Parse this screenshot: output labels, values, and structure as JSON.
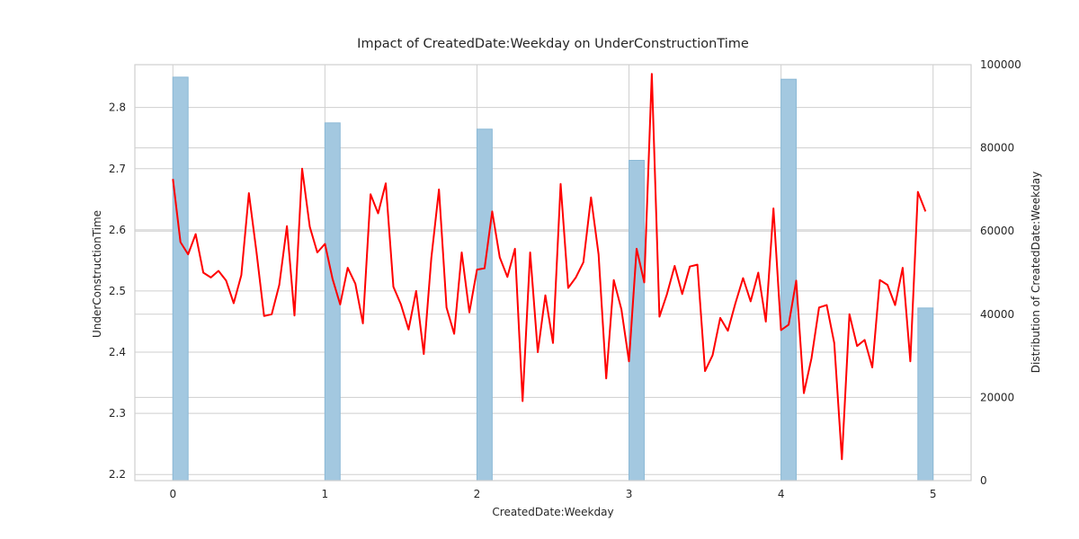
{
  "chart_data": {
    "type": "bar",
    "title": "Impact of CreatedDate:Weekday on UnderConstructionTime",
    "xlabel": "CreatedDate:Weekday",
    "ylabel": "UnderConstructionTime",
    "y2label": "Distribution of CreatedDate:Weekday",
    "xlim": [
      -0.25,
      5.25
    ],
    "ylim": [
      2.19,
      2.87
    ],
    "y2lim": [
      0,
      100000
    ],
    "x_ticks": [
      0,
      1,
      2,
      3,
      4,
      5
    ],
    "y_ticks": [
      2.2,
      2.3,
      2.4,
      2.5,
      2.6,
      2.7,
      2.8
    ],
    "y2_ticks": [
      0,
      20000,
      40000,
      60000,
      80000,
      100000
    ],
    "grid": true,
    "colors": {
      "line": "#ff0000",
      "bars": "#a3c8e0",
      "bar_edge": "#8bb9d6",
      "grid": "#cfcfcf"
    },
    "histogram": {
      "bin_width": 0.1,
      "bins": [
        {
          "left": 0.0,
          "count": 97000
        },
        {
          "left": 1.0,
          "count": 86000
        },
        {
          "left": 2.0,
          "count": 84500
        },
        {
          "left": 3.0,
          "count": 77000
        },
        {
          "left": 4.0,
          "count": 96500
        },
        {
          "left": 4.9,
          "count": 41500
        }
      ]
    },
    "series": [
      {
        "type": "line",
        "x": [
          0.0,
          0.05,
          0.1,
          0.15,
          0.2,
          0.25,
          0.3,
          0.35,
          0.4,
          0.45,
          0.5,
          0.55,
          0.6,
          0.65,
          0.7,
          0.75,
          0.8,
          0.85,
          0.9,
          0.95,
          1.0,
          1.05,
          1.1,
          1.15,
          1.2,
          1.25,
          1.3,
          1.35,
          1.4,
          1.45,
          1.5,
          1.55,
          1.6,
          1.65,
          1.7,
          1.75,
          1.8,
          1.85,
          1.9,
          1.95,
          2.0,
          2.05,
          2.1,
          2.15,
          2.2,
          2.25,
          2.3,
          2.35,
          2.4,
          2.45,
          2.5,
          2.55,
          2.6,
          2.65,
          2.7,
          2.75,
          2.8,
          2.85,
          2.9,
          2.95,
          3.0,
          3.05,
          3.1,
          3.15,
          3.2,
          3.25,
          3.3,
          3.35,
          3.4,
          3.45,
          3.5,
          3.55,
          3.6,
          3.65,
          3.7,
          3.75,
          3.8,
          3.85,
          3.9,
          3.95,
          4.0,
          4.05,
          4.1,
          4.15,
          4.2,
          4.25,
          4.3,
          4.35,
          4.4,
          4.45,
          4.5,
          4.55,
          4.6,
          4.65,
          4.7,
          4.75,
          4.8,
          4.85,
          4.9,
          4.95
        ],
        "y": [
          2.683,
          2.58,
          2.56,
          2.593,
          2.53,
          2.522,
          2.533,
          2.517,
          2.48,
          2.526,
          2.66,
          2.563,
          2.459,
          2.462,
          2.51,
          2.606,
          2.46,
          2.7,
          2.605,
          2.563,
          2.577,
          2.52,
          2.478,
          2.538,
          2.512,
          2.447,
          2.658,
          2.627,
          2.676,
          2.507,
          2.478,
          2.437,
          2.5,
          2.397,
          2.554,
          2.666,
          2.473,
          2.43,
          2.563,
          2.465,
          2.535,
          2.537,
          2.63,
          2.555,
          2.523,
          2.569,
          2.32,
          2.563,
          2.4,
          2.493,
          2.415,
          2.675,
          2.505,
          2.522,
          2.547,
          2.653,
          2.56,
          2.357,
          2.518,
          2.47,
          2.385,
          2.569,
          2.514,
          2.855,
          2.458,
          2.495,
          2.541,
          2.495,
          2.54,
          2.543,
          2.369,
          2.395,
          2.456,
          2.435,
          2.48,
          2.521,
          2.483,
          2.53,
          2.45,
          2.635,
          2.436,
          2.445,
          2.517,
          2.333,
          2.39,
          2.473,
          2.477,
          2.415,
          2.225,
          2.462,
          2.41,
          2.42,
          2.375,
          2.518,
          2.51,
          2.477,
          2.538,
          2.385,
          2.662,
          2.63
        ]
      }
    ]
  }
}
